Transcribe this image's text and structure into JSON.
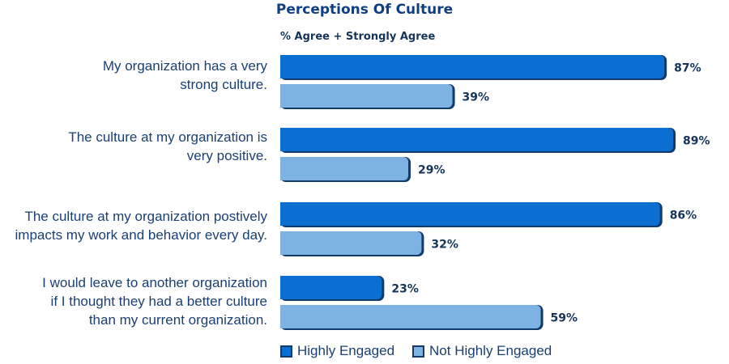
{
  "chart_data": {
    "type": "bar",
    "orientation": "horizontal",
    "title": "Perceptions Of Culture",
    "subtitle": "% Agree + Strongly Agree",
    "categories": [
      "My organization has a very strong culture.",
      "The culture at my organization is very positive.",
      "The culture at my organization postively impacts my work and behavior every day.",
      "I would leave to another organization if I thought they had a better culture than my current organization."
    ],
    "category_lines": [
      [
        "My organization has a very",
        "strong culture."
      ],
      [
        "The culture at my organization is",
        "very positive."
      ],
      [
        "The culture at my organization postively",
        "impacts my work and behavior every day."
      ],
      [
        "I would leave to another organization",
        "if I thought they had a better culture",
        "than my current organization."
      ]
    ],
    "series": [
      {
        "name": "Highly Engaged",
        "values": [
          87,
          89,
          86,
          23
        ],
        "labels": [
          "87%",
          "89%",
          "86%",
          "23%"
        ],
        "color": "#0a6fd0"
      },
      {
        "name": "Not Highly Engaged",
        "values": [
          39,
          29,
          32,
          59
        ],
        "labels": [
          "39%",
          "29%",
          "32%",
          "59%"
        ],
        "color": "#7db3e3"
      }
    ],
    "xlim": [
      0,
      100
    ],
    "grid": false,
    "legend_position": "bottom",
    "outline_color": "#123a6b"
  }
}
